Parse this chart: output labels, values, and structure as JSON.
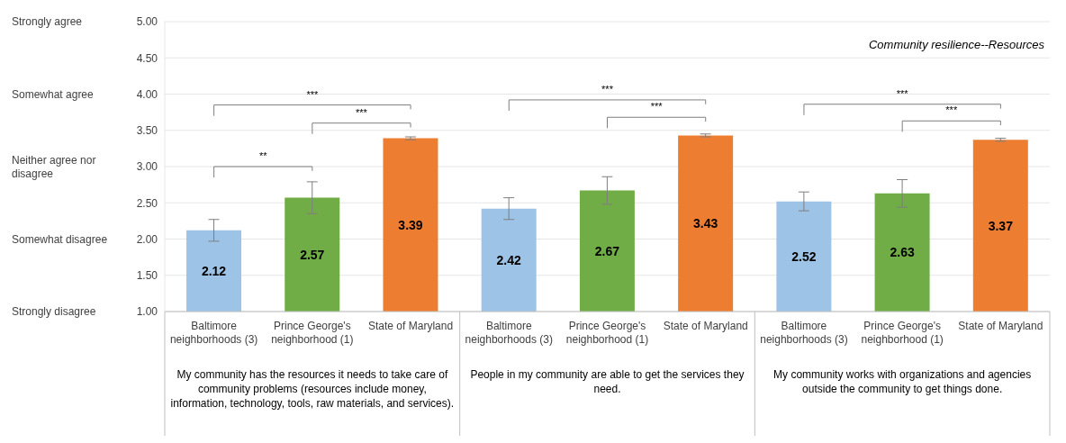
{
  "chart_data": {
    "type": "bar",
    "title": "Community resilience--Resources",
    "categories": [
      "Baltimore neighborhoods (3)",
      "Prince George's neighborhood (1)",
      "State of Maryland",
      "Baltimore neighborhoods (3)",
      "Prince George's neighborhood (1)",
      "State of Maryland",
      "Baltimore neighborhoods (3)",
      "Prince George's neighborhood (1)",
      "State of Maryland"
    ],
    "values": [
      2.12,
      2.57,
      3.39,
      2.42,
      2.67,
      3.43,
      2.52,
      2.63,
      3.37
    ],
    "colors": [
      "#9dc3e6",
      "#70ad47",
      "#ed7d31",
      "#9dc3e6",
      "#70ad47",
      "#ed7d31",
      "#9dc3e6",
      "#70ad47",
      "#ed7d31"
    ],
    "errors": [
      0.15,
      0.22,
      0.02,
      0.15,
      0.19,
      0.02,
      0.13,
      0.19,
      0.02
    ],
    "data_labels": true,
    "ylim": [
      1,
      5
    ],
    "yticks": [
      {
        "value": 1,
        "label": "1.00"
      },
      {
        "value": 1.5,
        "label": "1.50"
      },
      {
        "value": 2,
        "label": "2.00"
      },
      {
        "value": 2.5,
        "label": "2.50"
      },
      {
        "value": 3,
        "label": "3.00"
      },
      {
        "value": 3.5,
        "label": "3.50"
      },
      {
        "value": 4,
        "label": "4.00"
      },
      {
        "value": 4.5,
        "label": "4.50"
      },
      {
        "value": 5,
        "label": "5.00"
      }
    ],
    "grid": "y",
    "annotations": [
      "My community has the resources it needs to take care of community problems (resources include money, information, technology, tools, raw materials, and services).",
      "People in my community are able to get the services they need.",
      "My community works with organizations and agencies outside the community to get things done.",
      "***",
      "***",
      "**",
      "***",
      "***",
      "***",
      "***",
      "Strongly agree",
      "Somewhat agree",
      "Neither agree nor disagree",
      "Somewhat disagree",
      "Strongly disagree"
    ]
  }
}
